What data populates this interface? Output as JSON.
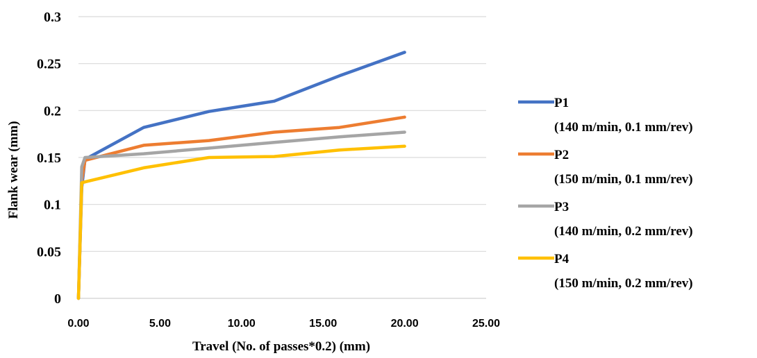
{
  "chart_data": {
    "type": "line",
    "xlabel": "Travel (No. of passes*0.2) (mm)",
    "ylabel": "Flank wear (mm)",
    "xlim": [
      0,
      25
    ],
    "ylim": [
      0,
      0.3
    ],
    "x_ticks": [
      "0.00",
      "5.00",
      "10.00",
      "15.00",
      "20.00",
      "25.00"
    ],
    "y_ticks": [
      "0",
      "0.05",
      "0.1",
      "0.15",
      "0.2",
      "0.25",
      "0.3"
    ],
    "grid": "horizontal",
    "legend_position": "right",
    "series": [
      {
        "name": "P1",
        "detail": "(140 m/min, 0.1 mm/rev)",
        "color": "#4472C4",
        "x": [
          0,
          0.2,
          0.4,
          4,
          8,
          12,
          16,
          20
        ],
        "y": [
          0,
          0.118,
          0.148,
          0.182,
          0.199,
          0.21,
          0.237,
          0.262
        ]
      },
      {
        "name": "P2",
        "detail": "(150 m/min, 0.1 mm/rev)",
        "color": "#ED7D31",
        "x": [
          0,
          0.2,
          0.4,
          4,
          8,
          12,
          16,
          20
        ],
        "y": [
          0,
          0.125,
          0.147,
          0.163,
          0.168,
          0.177,
          0.182,
          0.193
        ]
      },
      {
        "name": "P3",
        "detail": "(140 m/min, 0.2 mm/rev)",
        "color": "#A5A5A5",
        "x": [
          0,
          0.2,
          0.4,
          4,
          8,
          12,
          16,
          20
        ],
        "y": [
          0,
          0.14,
          0.15,
          0.154,
          0.16,
          0.166,
          0.172,
          0.177
        ]
      },
      {
        "name": "P4",
        "detail": "(150 m/min, 0.2 mm/rev)",
        "color": "#FFC000",
        "x": [
          0,
          0.2,
          0.4,
          4,
          8,
          12,
          16,
          20
        ],
        "y": [
          0,
          0.123,
          0.124,
          0.139,
          0.15,
          0.151,
          0.158,
          0.162
        ]
      }
    ]
  }
}
